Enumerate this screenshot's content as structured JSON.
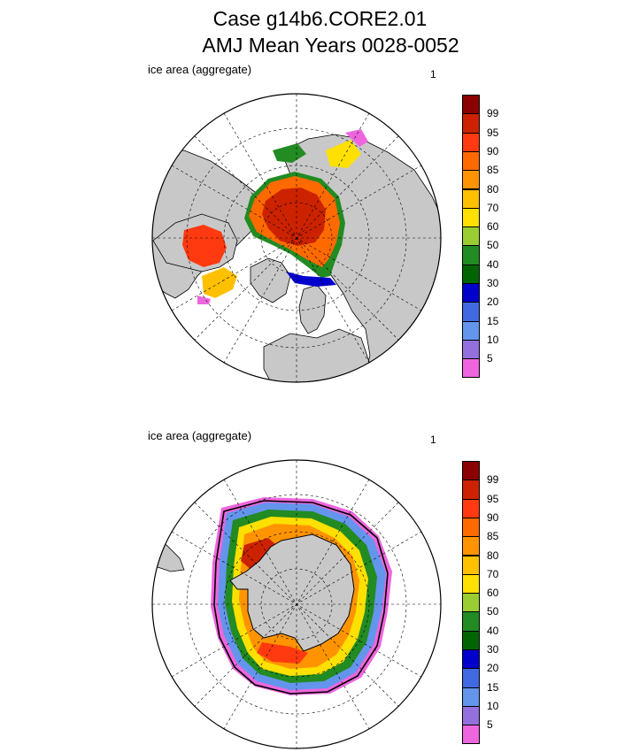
{
  "title": {
    "line1": "Case g14b6.CORE2.01",
    "line2": "AMJ Mean    Years 0028-0052"
  },
  "panels": [
    {
      "id": "north",
      "label": "ice area  (aggregate)",
      "index": "1",
      "hemisphere": "Arctic"
    },
    {
      "id": "south",
      "label": "ice area  (aggregate)",
      "index": "1",
      "hemisphere": "Antarctic"
    }
  ],
  "colorbar": {
    "levels": [
      "99",
      "95",
      "90",
      "85",
      "80",
      "70",
      "60",
      "50",
      "40",
      "30",
      "20",
      "15",
      "10",
      "5"
    ],
    "colors": [
      "#8b0000",
      "#cc2200",
      "#ff3a10",
      "#ff6a00",
      "#ff9400",
      "#ffc000",
      "#ffe000",
      "#9acd32",
      "#228b22",
      "#006400",
      "#0000cd",
      "#4169e1",
      "#6495ed",
      "#9370db",
      "#ee66dd"
    ]
  },
  "colors": {
    "land": "#c8c8c8",
    "ocean": "#ffffff",
    "grid": "#000000"
  }
}
